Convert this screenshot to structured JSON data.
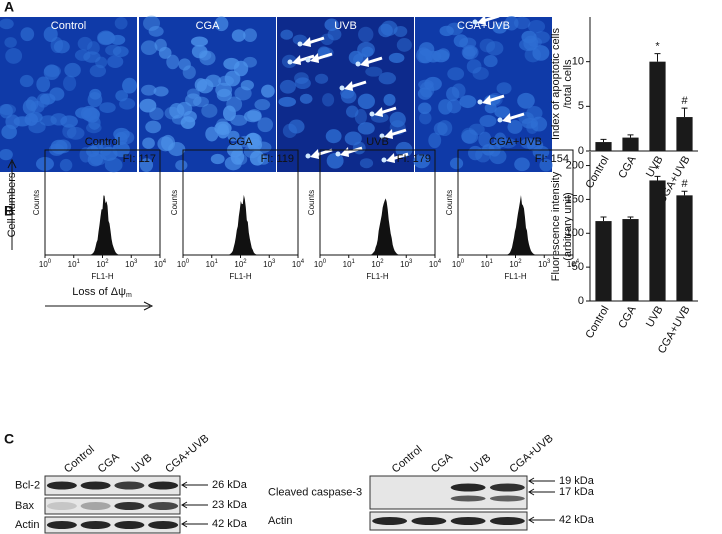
{
  "panel_labels": [
    "A",
    "B",
    "C"
  ],
  "groups": [
    "Control",
    "CGA",
    "UVB",
    "CGA+UVB"
  ],
  "chart_data": [
    {
      "type": "bar",
      "ylabel": [
        "Index of apoptotic cells",
        "/total cells"
      ],
      "categories": [
        "Control",
        "CGA",
        "UVB",
        "CGA+UVB"
      ],
      "values": [
        1.0,
        1.5,
        10.0,
        3.8
      ],
      "errors": [
        0.3,
        0.3,
        0.9,
        1.0
      ],
      "value_annotations": [
        null,
        null,
        "*",
        "#"
      ],
      "ylim": [
        0,
        15
      ],
      "yticks": [
        0,
        5,
        10
      ],
      "color": "#1a1a1a"
    },
    {
      "type": "bar",
      "ylabel": [
        "Fluorescence intensity",
        "(arbitrary unit)"
      ],
      "categories": [
        "Control",
        "CGA",
        "UVB",
        "CGA+UVB"
      ],
      "values": [
        118,
        121,
        178,
        156
      ],
      "errors": [
        6,
        3,
        6,
        6
      ],
      "value_annotations": [
        null,
        null,
        "*",
        "#"
      ],
      "ylim": [
        0,
        220
      ],
      "yticks": [
        0,
        50,
        100,
        150,
        200
      ],
      "color": "#1a1a1a"
    }
  ],
  "histograms": {
    "labels": [
      "FI: 117",
      "FI: 119",
      "FI: 179",
      "FI: 154"
    ],
    "ylabel": "Counts",
    "xlabel": "FL1-H",
    "xticks": [
      {
        "base": "10",
        "exp": "0"
      },
      {
        "base": "10",
        "exp": "1"
      },
      {
        "base": "10",
        "exp": "2"
      },
      {
        "base": "10",
        "exp": "3"
      },
      {
        "base": "10",
        "exp": "4"
      }
    ],
    "side_label": "Cell numbers",
    "bottom_label": "Loss of Δψ",
    "bottom_sub": "m"
  },
  "blots": {
    "left": {
      "rows": [
        "Bcl-2",
        "Bax",
        "Actin"
      ],
      "sizes": [
        "26 kDa",
        "23 kDa",
        "42 kDa"
      ]
    },
    "right": {
      "rows": [
        "Cleaved caspase-3",
        "Actin"
      ],
      "sizes": [
        "19 kDa",
        "17 kDa",
        "42 kDa"
      ]
    }
  }
}
